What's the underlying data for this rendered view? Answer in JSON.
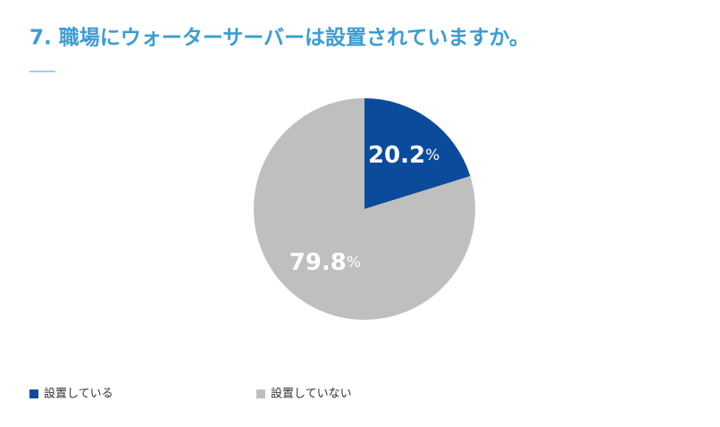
{
  "chart_data": {
    "type": "pie",
    "title": "7. 職場にウォーターサーバーは設置されていますか。",
    "categories": [
      "設置している",
      "設置していない"
    ],
    "values": [
      20.2,
      79.8
    ],
    "value_labels": [
      "20.2%",
      "79.8%"
    ],
    "colors": [
      "#0b4b9b",
      "#bfbfbf"
    ],
    "legend": "bottom"
  }
}
